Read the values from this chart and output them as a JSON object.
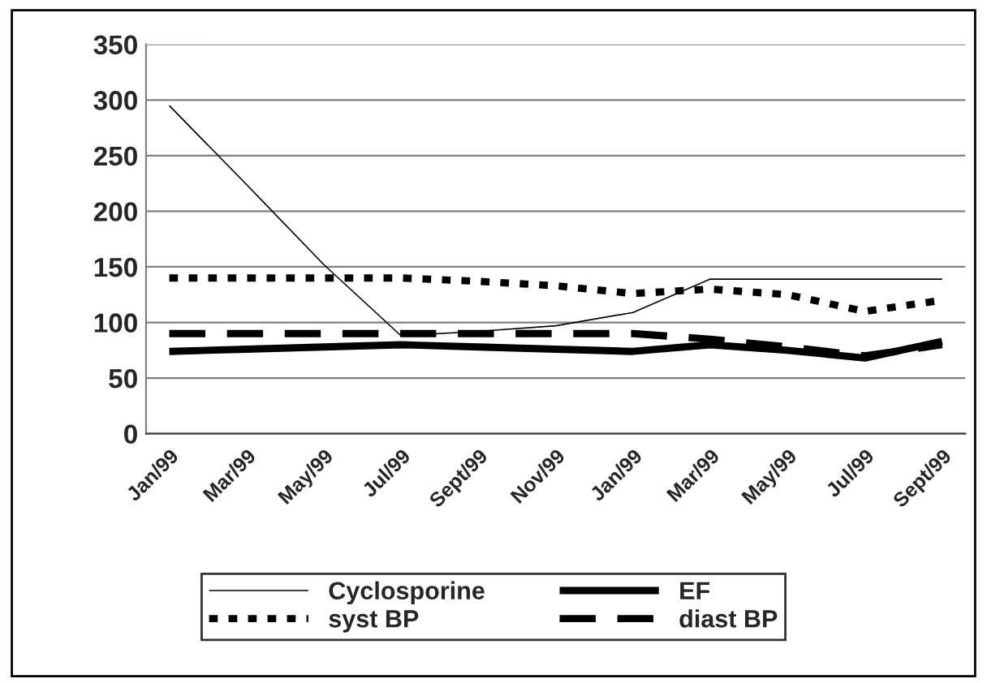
{
  "chart_data": {
    "type": "line",
    "categories": [
      "Jan/99",
      "Mar/99",
      "May/99",
      "Jul/99",
      "Sept/99",
      "Nov/99",
      "Jan/99",
      "Mar/99",
      "May/99",
      "Jul/99",
      "Sept/99"
    ],
    "series": [
      {
        "name": "Cyclosporine",
        "color": "#000000",
        "line_style": "solid",
        "values": [
          295,
          224,
          152,
          88,
          92,
          97,
          109,
          139,
          139,
          139,
          139
        ]
      },
      {
        "name": "EF",
        "color": "#000000",
        "line_style": "solid",
        "values": [
          74,
          76,
          78,
          80,
          78,
          76,
          74,
          80,
          75,
          68,
          83
        ]
      },
      {
        "name": "syst BP",
        "color": "#000000",
        "line_style": "dotted",
        "values": [
          140,
          140,
          140,
          140,
          137,
          133,
          126,
          130,
          125,
          110,
          120
        ]
      },
      {
        "name": "diast BP",
        "color": "#000000",
        "line_style": "dashed",
        "values": [
          90,
          90,
          90,
          90,
          90,
          90,
          90,
          85,
          78,
          70,
          80
        ]
      }
    ],
    "ylim": [
      0,
      350
    ],
    "yticks": [
      0,
      50,
      100,
      150,
      200,
      250,
      300,
      350
    ],
    "grid": "y",
    "legend": "bottom"
  }
}
